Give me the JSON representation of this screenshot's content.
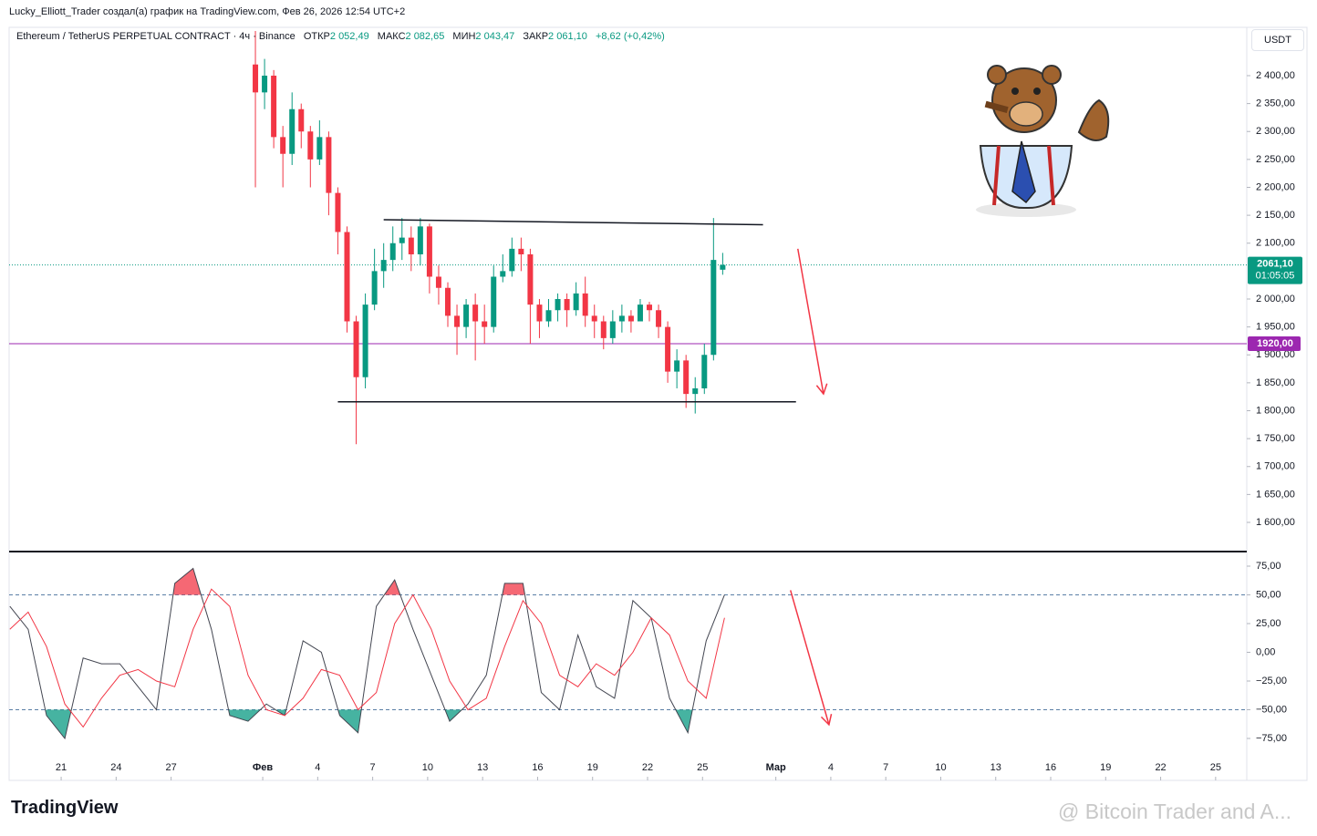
{
  "header": {
    "credit": "Lucky_Elliott_Trader создал(а) график на TradingView.com, Фев 26, 2026 12:54 UTC+2",
    "symbol": "Ethereum / TetherUS PERPETUAL CONTRACT · 4ч · Binance",
    "open_label": "ОТКР",
    "open": "2 052,49",
    "high_label": "МАКС",
    "high": "2 082,65",
    "low_label": "МИН",
    "low": "2 043,47",
    "close_label": "ЗАКР",
    "close": "2 061,10",
    "change": "+8,62 (+0,42%)",
    "currency": "USDT"
  },
  "footer": {
    "logo": "TradingView",
    "watermark": "@ Bitcoin Trader and A..."
  },
  "chart_data": [
    {
      "type": "candlestick",
      "x": [
        31.6,
        32.1,
        32.6,
        33.1,
        33.6,
        34.1,
        34.6,
        35.1,
        35.6,
        36.1,
        36.6,
        37.1,
        37.6,
        38.1,
        38.6,
        39.1,
        39.6,
        40.1,
        40.6,
        41.1,
        41.6,
        42.1,
        42.6,
        43.1,
        43.6,
        44.1,
        44.6,
        45.1,
        45.6,
        46.1,
        46.6,
        47.1,
        47.6,
        48.1,
        48.6,
        49.1,
        49.6,
        50.1,
        50.6,
        51.1,
        51.6,
        52.1,
        52.6,
        53.1,
        53.6,
        54.1,
        54.6,
        55.1,
        55.6,
        56.1,
        56.6,
        57.1
      ],
      "open": [
        2420,
        2370,
        2400,
        2290,
        2260,
        2340,
        2300,
        2250,
        2290,
        2190,
        2120,
        1960,
        1860,
        1990,
        2050,
        2070,
        2100,
        2110,
        2080,
        2130,
        2040,
        2020,
        1970,
        1950,
        1990,
        1960,
        1950,
        2040,
        2050,
        2090,
        2080,
        1990,
        1960,
        1980,
        2000,
        1980,
        2010,
        1970,
        1960,
        1930,
        1960,
        1970,
        1960,
        1990,
        1980,
        1950,
        1870,
        1890,
        1830,
        1840,
        1900,
        2052.49
      ],
      "high": [
        2480,
        2430,
        2410,
        2310,
        2370,
        2350,
        2310,
        2320,
        2300,
        2200,
        2130,
        1970,
        2010,
        2090,
        2100,
        2130,
        2145,
        2130,
        2145,
        2135,
        2060,
        2030,
        1990,
        2000,
        2010,
        1990,
        2060,
        2080,
        2110,
        2110,
        2090,
        2000,
        2000,
        2010,
        2010,
        2030,
        2040,
        1990,
        1970,
        1980,
        1990,
        1980,
        2000,
        1995,
        1990,
        1960,
        1910,
        1900,
        1860,
        1920,
        2145,
        2082.65
      ],
      "low": [
        2200,
        2340,
        2270,
        2200,
        2240,
        2270,
        2200,
        2240,
        2150,
        2080,
        1940,
        1740,
        1840,
        1980,
        2020,
        2050,
        2070,
        2050,
        2060,
        2010,
        1990,
        1950,
        1900,
        1930,
        1890,
        1920,
        1940,
        2030,
        2040,
        2050,
        1920,
        1930,
        1950,
        1960,
        1950,
        1970,
        1950,
        1930,
        1910,
        1920,
        1940,
        1940,
        1960,
        1960,
        1930,
        1850,
        1840,
        1805,
        1795,
        1830,
        1890,
        2043.47
      ],
      "close": [
        2370,
        2400,
        2290,
        2260,
        2340,
        2300,
        2250,
        2290,
        2190,
        2120,
        1960,
        1860,
        1990,
        2050,
        2070,
        2100,
        2110,
        2080,
        2130,
        2040,
        2020,
        1970,
        1950,
        1990,
        1960,
        1950,
        2040,
        2050,
        2090,
        2080,
        1990,
        1960,
        1980,
        2000,
        1980,
        2010,
        1970,
        1960,
        1930,
        1960,
        1970,
        1960,
        1990,
        1980,
        1950,
        1870,
        1890,
        1830,
        1840,
        1900,
        2070,
        2061.1
      ],
      "up_color": "#089981",
      "down_color": "#f23645",
      "xlim": [
        18.16,
        85.7
      ],
      "ylim": [
        1549.4,
        2486.5
      ],
      "yticks": [
        {
          "value": 2400,
          "label": "2 400,00"
        },
        {
          "value": 2350,
          "label": "2 350,00"
        },
        {
          "value": 2300,
          "label": "2 300,00"
        },
        {
          "value": 2250,
          "label": "2 250,00"
        },
        {
          "value": 2200,
          "label": "2 200,00"
        },
        {
          "value": 2150,
          "label": "2 150,00"
        },
        {
          "value": 2100,
          "label": "2 100,00"
        },
        {
          "value": 2000,
          "label": "2 000,00"
        },
        {
          "value": 1950,
          "label": "1 950,00"
        },
        {
          "value": 1900,
          "label": "1 900,00"
        },
        {
          "value": 1850,
          "label": "1 850,00"
        },
        {
          "value": 1800,
          "label": "1 800,00"
        },
        {
          "value": 1750,
          "label": "1 750,00"
        },
        {
          "value": 1700,
          "label": "1 700,00"
        },
        {
          "value": 1650,
          "label": "1 650,00"
        },
        {
          "value": 1600,
          "label": "1 600,00"
        }
      ],
      "last_price": {
        "value": 2061.1,
        "label": "2061,10",
        "countdown": "01:05:05",
        "color": "#089981"
      },
      "price_lines": [
        {
          "value": 1920,
          "label": "1920,00",
          "color": "#9c27b0"
        }
      ],
      "trendlines": [
        {
          "x": [
            38.6,
            59.3
          ],
          "y": [
            2142,
            2133
          ],
          "color": "#131722"
        },
        {
          "x": [
            36.1,
            61.1
          ],
          "y": [
            1816,
            1816
          ],
          "color": "#131722"
        }
      ],
      "arrows": [
        {
          "x": [
            61.2,
            62.6
          ],
          "y": [
            2090,
            1830
          ],
          "color": "#f23645"
        }
      ]
    },
    {
      "type": "line",
      "x": [
        18.2,
        19.2,
        20.2,
        21.2,
        22.2,
        23.2,
        24.2,
        25.2,
        26.2,
        27.2,
        28.2,
        29.2,
        30.2,
        31.2,
        32.2,
        33.2,
        34.2,
        35.2,
        36.2,
        37.2,
        38.2,
        39.2,
        40.2,
        41.2,
        42.2,
        43.2,
        44.2,
        45.2,
        46.2,
        47.2,
        48.2,
        49.2,
        50.2,
        51.2,
        52.2,
        53.2,
        54.2,
        55.2,
        56.2,
        57.2
      ],
      "series": [
        {
          "color": "#434651",
          "values": [
            40,
            20,
            -55,
            -75,
            -5,
            -10,
            -10,
            -30,
            -50,
            60,
            73,
            20,
            -55,
            -60,
            -45,
            -55,
            10,
            0,
            -55,
            -70,
            40,
            63,
            20,
            -20,
            -60,
            -45,
            -20,
            60,
            60,
            -35,
            -50,
            15,
            -30,
            -40,
            45,
            30,
            -40,
            -70,
            10,
            50
          ]
        },
        {
          "color": "#f23645",
          "values": [
            20,
            35,
            5,
            -45,
            -65,
            -40,
            -20,
            -15,
            -25,
            -30,
            20,
            55,
            40,
            -20,
            -50,
            -55,
            -40,
            -15,
            -20,
            -50,
            -35,
            25,
            50,
            20,
            -25,
            -50,
            -40,
            5,
            45,
            25,
            -20,
            -30,
            -10,
            -20,
            0,
            30,
            15,
            -25,
            -40,
            30
          ]
        }
      ],
      "bands": [
        {
          "value": 50,
          "fill": "#f23645"
        },
        {
          "value": -50,
          "fill": "#089981"
        }
      ],
      "xlim": [
        18.16,
        85.7
      ],
      "ylim": [
        -111.5,
        86.9
      ],
      "yticks": [
        {
          "value": 75,
          "label": "75,00"
        },
        {
          "value": 50,
          "label": "50,00"
        },
        {
          "value": 25,
          "label": "25,00"
        },
        {
          "value": 0,
          "label": "0,00"
        },
        {
          "value": -25,
          "label": "−25,00"
        },
        {
          "value": -50,
          "label": "−50,00"
        },
        {
          "value": -75,
          "label": "−75,00"
        }
      ],
      "xticks": [
        21,
        24,
        27,
        {
          "value": 32,
          "label": "Фев"
        },
        {
          "value": 35,
          "label": "4"
        },
        {
          "value": 38,
          "label": "7"
        },
        {
          "value": 41,
          "label": "10"
        },
        {
          "value": 44,
          "label": "13"
        },
        {
          "value": 47,
          "label": "16"
        },
        {
          "value": 50,
          "label": "19"
        },
        {
          "value": 53,
          "label": "22"
        },
        {
          "value": 56,
          "label": "25"
        },
        {
          "value": 60,
          "label": "Мар"
        },
        {
          "value": 63,
          "label": "4"
        },
        {
          "value": 66,
          "label": "7"
        },
        {
          "value": 69,
          "label": "10"
        },
        {
          "value": 72,
          "label": "13"
        },
        {
          "value": 75,
          "label": "16"
        },
        {
          "value": 78,
          "label": "19"
        },
        {
          "value": 81,
          "label": "22"
        },
        {
          "value": 84,
          "label": "25"
        }
      ],
      "arrows": [
        {
          "x": [
            60.8,
            62.9
          ],
          "y": [
            54,
            -63
          ],
          "color": "#f23645"
        }
      ]
    }
  ]
}
